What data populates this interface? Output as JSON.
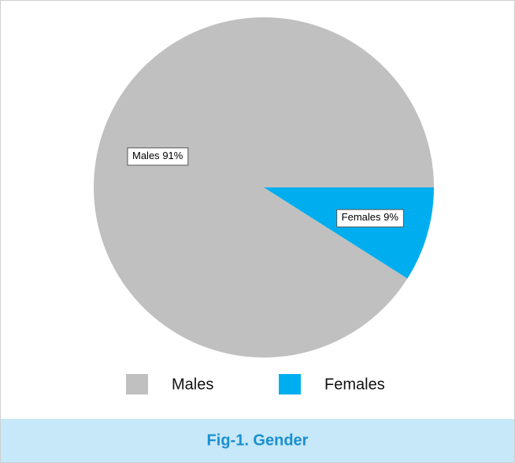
{
  "chart_data": {
    "type": "pie",
    "title": "Fig-1. Gender",
    "categories": [
      "Males",
      "Females"
    ],
    "values": [
      91,
      9
    ],
    "value_labels": [
      "91%",
      "9%"
    ],
    "colors": [
      "#c0c0c0",
      "#00aeef"
    ],
    "legend": "bottom"
  }
}
